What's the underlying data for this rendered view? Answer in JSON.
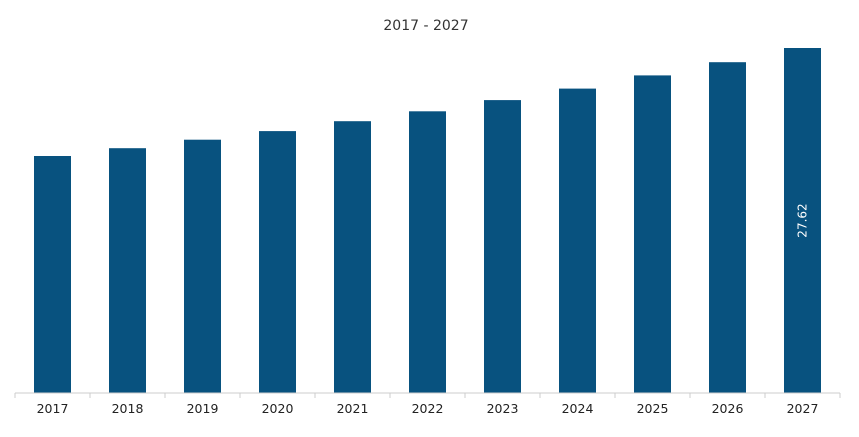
{
  "chart_data": {
    "type": "bar",
    "title": "2017 - 2027",
    "xlabel": "",
    "ylabel": "",
    "categories": [
      "2017",
      "2018",
      "2019",
      "2020",
      "2021",
      "2022",
      "2023",
      "2024",
      "2025",
      "2026",
      "2027"
    ],
    "values": [
      18.97,
      19.6,
      20.28,
      20.97,
      21.76,
      22.55,
      23.45,
      24.37,
      25.43,
      26.48,
      27.62
    ],
    "data_labels": [
      {
        "category": "2027",
        "text": "27.62"
      }
    ],
    "ylim": [
      0,
      27.62
    ],
    "grid": false,
    "legend": "none",
    "colors": {
      "bar": "#08527f",
      "axis": "#cccccc",
      "text": "#222222"
    }
  }
}
